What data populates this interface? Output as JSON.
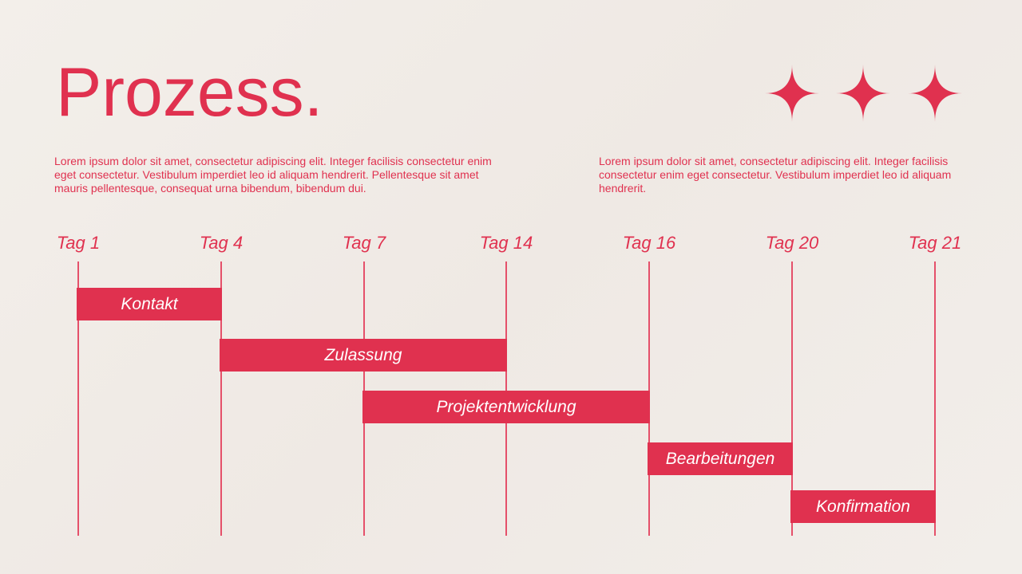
{
  "header": {
    "title": "Prozess."
  },
  "paragraphs": [
    "Lorem ipsum dolor sit amet, consectetur adipiscing elit. Integer facilisis consectetur enim eget consectetur. Vestibulum imperdiet leo id aliquam hendrerit. Pellentesque sit amet mauris pellentesque, consequat urna bibendum, bibendum dui.",
    "Lorem ipsum dolor sit amet, consectetur adipiscing elit. Integer facilisis consectetur enim eget consectetur. Vestibulum imperdiet leo id aliquam hendrerit."
  ],
  "timeline": {
    "columns": [
      "Tag 1",
      "Tag 4",
      "Tag 7",
      "Tag 14",
      "Tag 16",
      "Tag 20",
      "Tag 21"
    ],
    "tasks": [
      "Kontakt",
      "Zulassung",
      "Projektentwicklung",
      "Bearbeitungen",
      "Konfirmation"
    ]
  }
}
